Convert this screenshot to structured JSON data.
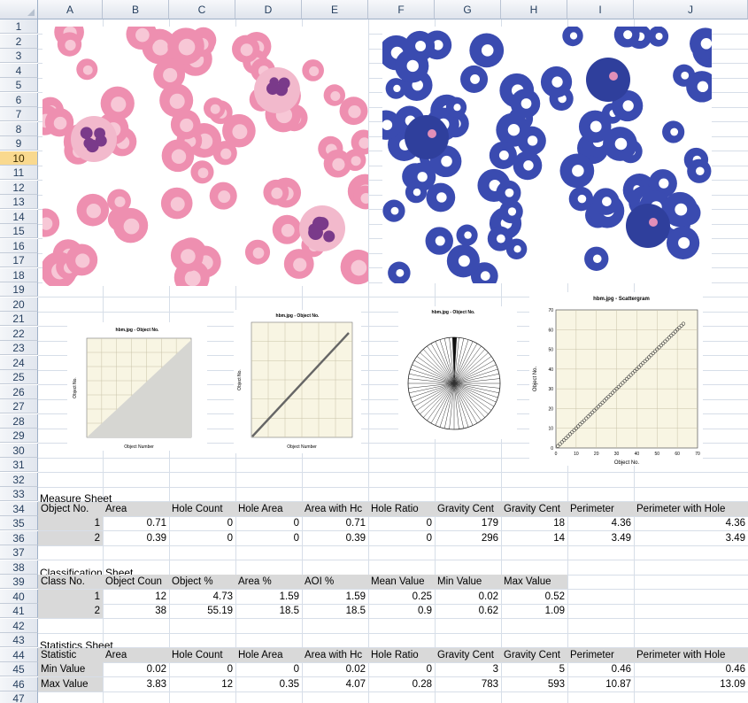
{
  "columns": [
    "A",
    "B",
    "C",
    "D",
    "E",
    "F",
    "G",
    "H",
    "I",
    "J"
  ],
  "active_row": 10,
  "charts": {
    "c1": {
      "title": "hbm.jpg - Object No.",
      "xlabel": "Object Number",
      "ylabel": "Object No."
    },
    "c2": {
      "title": "hbm.jpg - Object No.",
      "xlabel": "Object Number",
      "ylabel": "Object No."
    },
    "c3": {
      "title": "hbm.jpg - Object No."
    },
    "c4": {
      "title": "hbm.jpg - Scattergram",
      "xlabel": "Object No.",
      "ylabel": "Object No.",
      "x_ticks": [
        "0",
        "10",
        "20",
        "30",
        "40",
        "50",
        "60",
        "70"
      ],
      "y_ticks": [
        "0",
        "10",
        "20",
        "30",
        "40",
        "50",
        "60",
        "70"
      ]
    }
  },
  "chart_data": [
    {
      "type": "area",
      "title": "hbm.jpg - Object No.",
      "xlabel": "Object Number",
      "ylabel": "Object No."
    },
    {
      "type": "line",
      "title": "hbm.jpg - Object No.",
      "xlabel": "Object Number",
      "ylabel": "Object No."
    },
    {
      "type": "pie",
      "title": "hbm.jpg - Object No."
    },
    {
      "type": "scatter",
      "title": "hbm.jpg - Scattergram",
      "xlabel": "Object No.",
      "ylabel": "Object No.",
      "xlim": [
        0,
        70
      ],
      "ylim": [
        0,
        70
      ]
    }
  ],
  "measure": {
    "title": "Measure Sheet",
    "headers": [
      "Object No.",
      "Area",
      "Hole Count",
      "Hole Area",
      "Area with Hc",
      "Hole Ratio",
      "Gravity Cent",
      "Gravity Cent",
      "Perimeter",
      "Perimeter with Hole"
    ],
    "rows": [
      [
        "1",
        "0.71",
        "0",
        "0",
        "0.71",
        "0",
        "179",
        "18",
        "4.36",
        "4.36"
      ],
      [
        "2",
        "0.39",
        "0",
        "0",
        "0.39",
        "0",
        "296",
        "14",
        "3.49",
        "3.49"
      ]
    ]
  },
  "classification": {
    "title": "Classification Sheet",
    "headers": [
      "Class No.",
      "Object Coun",
      "Object %",
      "Area %",
      "AOI %",
      "Mean Value",
      "Min Value",
      "Max Value"
    ],
    "rows": [
      [
        "1",
        "12",
        "4.73",
        "1.59",
        "1.59",
        "0.25",
        "0.02",
        "0.52"
      ],
      [
        "2",
        "38",
        "55.19",
        "18.5",
        "18.5",
        "0.9",
        "0.62",
        "1.09"
      ]
    ]
  },
  "statistics": {
    "title": "Statistics Sheet",
    "headers": [
      "Statistic",
      "Area",
      "Hole Count",
      "Hole Area",
      "Area with Hc",
      "Hole Ratio",
      "Gravity Cent",
      "Gravity Cent",
      "Perimeter",
      "Perimeter with Hole"
    ],
    "rows": [
      [
        "Min Value",
        "0.02",
        "0",
        "0",
        "0.02",
        "0",
        "3",
        "5",
        "0.46",
        "0.46"
      ],
      [
        "Max Value",
        "3.83",
        "12",
        "0.35",
        "4.07",
        "0.28",
        "783",
        "593",
        "10.87",
        "13.09"
      ]
    ]
  }
}
